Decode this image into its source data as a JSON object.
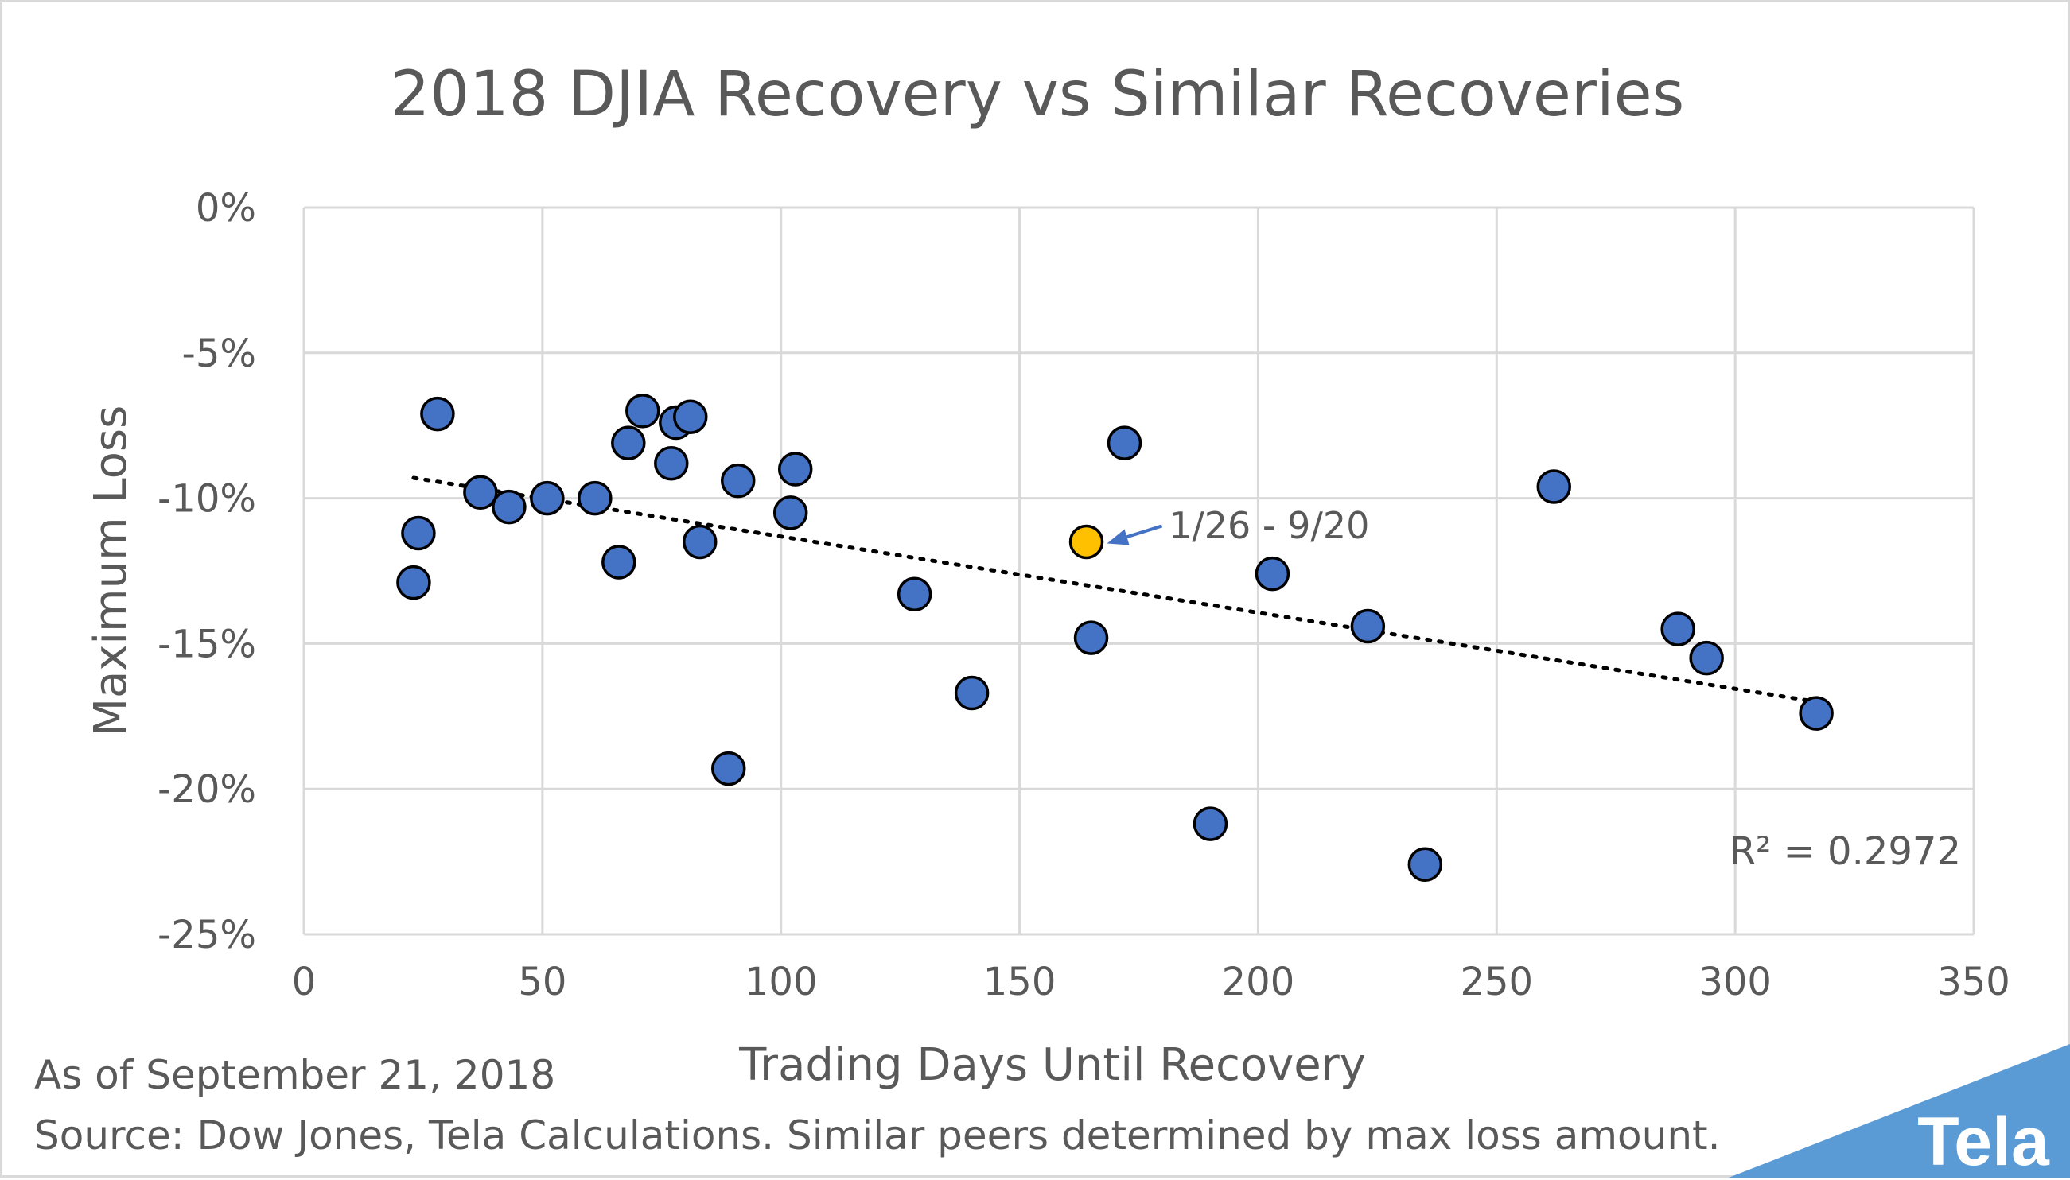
{
  "chart_data": {
    "type": "scatter",
    "title": "2018 DJIA Recovery vs Similar Recoveries",
    "xlabel": "Trading Days Until Recovery",
    "ylabel": "Maximum Loss",
    "xlim": [
      0,
      350
    ],
    "ylim": [
      -25,
      0
    ],
    "x_ticks": [
      0,
      50,
      100,
      150,
      200,
      250,
      300,
      350
    ],
    "x_tick_labels": [
      "0",
      "50",
      "100",
      "150",
      "200",
      "250",
      "300",
      "350"
    ],
    "y_ticks": [
      0,
      -5,
      -10,
      -15,
      -20,
      -25
    ],
    "y_tick_labels": [
      "0%",
      "-5%",
      "-10%",
      "-15%",
      "-20%",
      "-25%"
    ],
    "grid": true,
    "series": [
      {
        "color": "#4472c4",
        "points": [
          {
            "x": 23,
            "y": -12.9
          },
          {
            "x": 24,
            "y": -11.2
          },
          {
            "x": 28,
            "y": -7.1
          },
          {
            "x": 37,
            "y": -9.8
          },
          {
            "x": 43,
            "y": -10.3
          },
          {
            "x": 51,
            "y": -10.0
          },
          {
            "x": 61,
            "y": -10.0
          },
          {
            "x": 66,
            "y": -12.2
          },
          {
            "x": 68,
            "y": -8.1
          },
          {
            "x": 71,
            "y": -7.0
          },
          {
            "x": 77,
            "y": -8.8
          },
          {
            "x": 78,
            "y": -7.4
          },
          {
            "x": 81,
            "y": -7.2
          },
          {
            "x": 83,
            "y": -11.5
          },
          {
            "x": 89,
            "y": -19.3
          },
          {
            "x": 91,
            "y": -9.4
          },
          {
            "x": 102,
            "y": -10.5
          },
          {
            "x": 103,
            "y": -9.0
          },
          {
            "x": 128,
            "y": -13.3
          },
          {
            "x": 140,
            "y": -16.7
          },
          {
            "x": 165,
            "y": -14.8
          },
          {
            "x": 172,
            "y": -8.1
          },
          {
            "x": 190,
            "y": -21.2
          },
          {
            "x": 203,
            "y": -12.6
          },
          {
            "x": 223,
            "y": -14.4
          },
          {
            "x": 235,
            "y": -22.6
          },
          {
            "x": 262,
            "y": -9.6
          },
          {
            "x": 288,
            "y": -14.5
          },
          {
            "x": 294,
            "y": -15.5
          },
          {
            "x": 317,
            "y": -17.4
          }
        ]
      },
      {
        "color": "#ffc000",
        "points": [
          {
            "x": 164,
            "y": -11.5
          }
        ]
      }
    ],
    "trendline": {
      "type": "linear",
      "x_start": 23,
      "y_start": -9.3,
      "x_end": 317,
      "y_end": -17.0,
      "r_squared_label": "R² = 0.2972"
    },
    "annotation": {
      "text": "1/26 - 9/20",
      "target_x": 164,
      "target_y": -11.5,
      "arrow_color": "#4472c4"
    }
  },
  "footer": {
    "as_of": "As of September 21, 2018",
    "source": "Source: Dow Jones, Tela Calculations. Similar peers determined by max loss amount."
  },
  "brand": {
    "name": "Tela",
    "color": "#5b9bd5"
  }
}
